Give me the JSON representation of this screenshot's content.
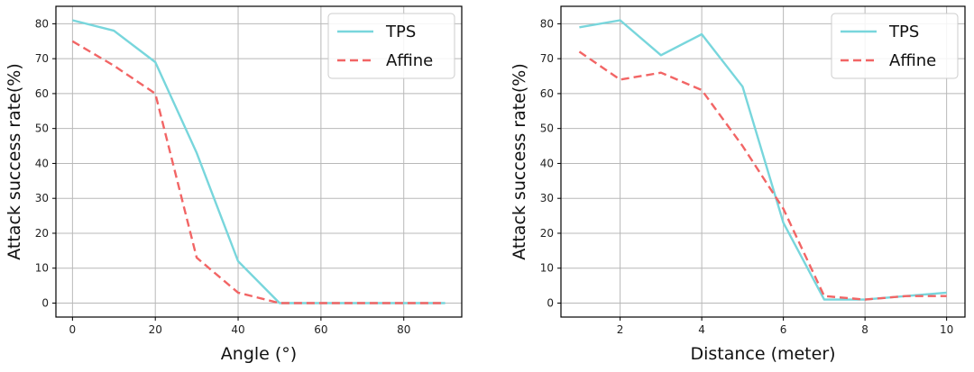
{
  "chart_data": [
    {
      "type": "line",
      "title": "",
      "xlabel": "Angle (°)",
      "ylabel": "Attack success rate(%)",
      "xlim": [
        -4,
        94
      ],
      "ylim": [
        -4,
        85
      ],
      "xticks": [
        0,
        20,
        40,
        60,
        80
      ],
      "yticks": [
        0,
        10,
        20,
        30,
        40,
        50,
        60,
        70,
        80
      ],
      "grid": true,
      "legend_position": "top-right",
      "series": [
        {
          "name": "TPS",
          "color": "#78d6dc",
          "dash": "solid",
          "x": [
            0,
            10,
            20,
            30,
            40,
            50,
            60,
            70,
            80,
            90
          ],
          "y": [
            81,
            78,
            69,
            43,
            12,
            0,
            0,
            0,
            0,
            0
          ]
        },
        {
          "name": "Affine",
          "color": "#f26565",
          "dash": "dashed",
          "x": [
            0,
            10,
            20,
            30,
            40,
            50,
            60,
            70,
            80,
            90
          ],
          "y": [
            75,
            68,
            60,
            13,
            3,
            0,
            0,
            0,
            0,
            0
          ]
        }
      ]
    },
    {
      "type": "line",
      "title": "",
      "xlabel": "Distance (meter)",
      "ylabel": "Attack success rate(%)",
      "xlim": [
        0.55,
        10.45
      ],
      "ylim": [
        -4,
        85
      ],
      "xticks": [
        2,
        4,
        6,
        8,
        10
      ],
      "yticks": [
        0,
        10,
        20,
        30,
        40,
        50,
        60,
        70,
        80
      ],
      "grid": true,
      "legend_position": "top-right",
      "series": [
        {
          "name": "TPS",
          "color": "#78d6dc",
          "dash": "solid",
          "x": [
            1,
            2,
            3,
            4,
            5,
            6,
            7,
            8,
            9,
            10
          ],
          "y": [
            79,
            81,
            71,
            77,
            62,
            23,
            1,
            1,
            2,
            3
          ]
        },
        {
          "name": "Affine",
          "color": "#f26565",
          "dash": "dashed",
          "x": [
            1,
            2,
            3,
            4,
            5,
            6,
            7,
            8,
            9,
            10
          ],
          "y": [
            72,
            64,
            66,
            61,
            45,
            27,
            2,
            1,
            2,
            2
          ]
        }
      ]
    }
  ]
}
